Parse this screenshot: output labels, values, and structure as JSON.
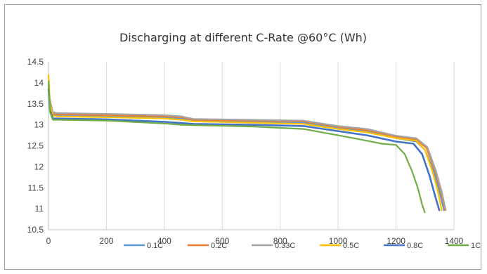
{
  "chart_data": {
    "type": "line",
    "title": "Discharging at different C-Rate  @60°C (Wh)",
    "xlabel": "",
    "ylabel": "",
    "xlim": [
      0,
      1400
    ],
    "ylim": [
      10.5,
      14.5
    ],
    "x_ticks": [
      "0",
      "200",
      "400",
      "600",
      "800",
      "1000",
      "1200",
      "1400"
    ],
    "y_ticks": [
      "10.5",
      "11",
      "11.5",
      "12",
      "12.5",
      "13",
      "13.5",
      "14",
      "14.5"
    ],
    "grid": "vertical",
    "legend_position": "bottom",
    "series": [
      {
        "name": "0.1C",
        "color": "#5b9bd5",
        "points": [
          [
            0,
            13.9
          ],
          [
            5,
            13.5
          ],
          [
            15,
            13.25
          ],
          [
            30,
            13.22
          ],
          [
            200,
            13.2
          ],
          [
            400,
            13.18
          ],
          [
            460,
            13.15
          ],
          [
            500,
            13.1
          ],
          [
            700,
            13.08
          ],
          [
            880,
            13.05
          ],
          [
            1000,
            12.92
          ],
          [
            1100,
            12.84
          ],
          [
            1200,
            12.68
          ],
          [
            1270,
            12.6
          ],
          [
            1300,
            12.4
          ],
          [
            1330,
            11.9
          ],
          [
            1350,
            11.4
          ],
          [
            1366,
            10.95
          ]
        ]
      },
      {
        "name": "0.2C",
        "color": "#ed7d31",
        "points": [
          [
            0,
            13.95
          ],
          [
            5,
            13.55
          ],
          [
            15,
            13.27
          ],
          [
            30,
            13.25
          ],
          [
            200,
            13.23
          ],
          [
            400,
            13.2
          ],
          [
            460,
            13.18
          ],
          [
            500,
            13.12
          ],
          [
            700,
            13.1
          ],
          [
            880,
            13.08
          ],
          [
            1000,
            12.95
          ],
          [
            1100,
            12.87
          ],
          [
            1200,
            12.72
          ],
          [
            1270,
            12.65
          ],
          [
            1305,
            12.45
          ],
          [
            1335,
            11.9
          ],
          [
            1355,
            11.4
          ],
          [
            1370,
            10.95
          ]
        ]
      },
      {
        "name": "0.33C",
        "color": "#a5a5a5",
        "points": [
          [
            0,
            14.0
          ],
          [
            5,
            13.6
          ],
          [
            15,
            13.3
          ],
          [
            30,
            13.28
          ],
          [
            200,
            13.26
          ],
          [
            400,
            13.23
          ],
          [
            460,
            13.2
          ],
          [
            500,
            13.14
          ],
          [
            700,
            13.12
          ],
          [
            880,
            13.1
          ],
          [
            1000,
            12.97
          ],
          [
            1100,
            12.9
          ],
          [
            1200,
            12.74
          ],
          [
            1270,
            12.68
          ],
          [
            1308,
            12.47
          ],
          [
            1338,
            11.9
          ],
          [
            1358,
            11.4
          ],
          [
            1372,
            10.95
          ]
        ]
      },
      {
        "name": "0.5C",
        "color": "#ffc000",
        "points": [
          [
            0,
            14.2
          ],
          [
            5,
            13.5
          ],
          [
            15,
            13.22
          ],
          [
            30,
            13.2
          ],
          [
            200,
            13.18
          ],
          [
            400,
            13.15
          ],
          [
            460,
            13.12
          ],
          [
            500,
            13.08
          ],
          [
            700,
            13.05
          ],
          [
            880,
            13.02
          ],
          [
            1000,
            12.9
          ],
          [
            1100,
            12.82
          ],
          [
            1200,
            12.68
          ],
          [
            1270,
            12.62
          ],
          [
            1300,
            12.4
          ],
          [
            1325,
            11.9
          ],
          [
            1345,
            11.4
          ],
          [
            1358,
            10.95
          ]
        ]
      },
      {
        "name": "0.8C",
        "color": "#4472c4",
        "points": [
          [
            0,
            13.85
          ],
          [
            5,
            13.35
          ],
          [
            15,
            13.15
          ],
          [
            30,
            13.15
          ],
          [
            200,
            13.13
          ],
          [
            400,
            13.07
          ],
          [
            460,
            13.04
          ],
          [
            500,
            13.02
          ],
          [
            700,
            13.0
          ],
          [
            880,
            12.97
          ],
          [
            1000,
            12.85
          ],
          [
            1100,
            12.75
          ],
          [
            1200,
            12.6
          ],
          [
            1260,
            12.55
          ],
          [
            1290,
            12.3
          ],
          [
            1315,
            11.8
          ],
          [
            1335,
            11.3
          ],
          [
            1350,
            10.95
          ]
        ]
      },
      {
        "name": "1C",
        "color": "#70ad47",
        "points": [
          [
            0,
            14.05
          ],
          [
            5,
            13.3
          ],
          [
            15,
            13.12
          ],
          [
            30,
            13.12
          ],
          [
            200,
            13.1
          ],
          [
            400,
            13.03
          ],
          [
            460,
            13.0
          ],
          [
            500,
            12.99
          ],
          [
            700,
            12.96
          ],
          [
            880,
            12.9
          ],
          [
            1000,
            12.75
          ],
          [
            1100,
            12.62
          ],
          [
            1150,
            12.55
          ],
          [
            1200,
            12.52
          ],
          [
            1230,
            12.3
          ],
          [
            1255,
            11.9
          ],
          [
            1275,
            11.5
          ],
          [
            1290,
            11.1
          ],
          [
            1300,
            10.9
          ]
        ]
      }
    ]
  }
}
